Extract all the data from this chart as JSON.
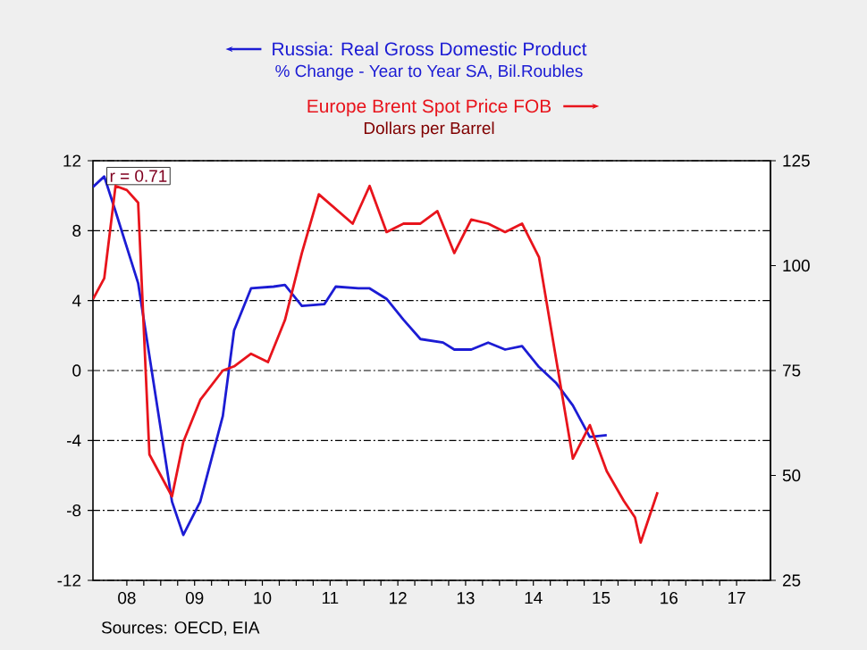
{
  "chart_data": {
    "type": "line",
    "ylabel": "% Change - Year to Year    SA, Bil.Roubles",
    "series": [
      {
        "name": "Russia: Real Gross Domestic Product",
        "color": "#1c1cd4",
        "axis": "y",
        "x": [
          "2008-01",
          "2008-03",
          "2008-05",
          "2008-09",
          "2009-03",
          "2009-05",
          "2009-08",
          "2009-12",
          "2010-02",
          "2010-05",
          "2010-09",
          "2010-11",
          "2011-02",
          "2011-06",
          "2011-08",
          "2011-12",
          "2012-02",
          "2012-05",
          "2012-08",
          "2012-11",
          "2013-03",
          "2013-05",
          "2013-08",
          "2013-11",
          "2014-02",
          "2014-05",
          "2014-08",
          "2014-11",
          "2015-02",
          "2015-05",
          "2015-08"
        ],
        "values": [
          10.5,
          11.1,
          9.1,
          5.0,
          -7.5,
          -9.4,
          -7.5,
          -2.6,
          2.3,
          4.7,
          4.8,
          4.9,
          3.7,
          3.8,
          4.8,
          4.7,
          4.7,
          4.1,
          2.9,
          1.8,
          1.6,
          1.2,
          1.2,
          1.6,
          1.2,
          1.4,
          0.2,
          -0.7,
          -2.0,
          -3.8,
          -3.7
        ]
      },
      {
        "name": "Europe Brent Spot Price FOB",
        "color": "#e8141c",
        "axis": "y2",
        "x": [
          "2008-01",
          "2008-03",
          "2008-05",
          "2008-07",
          "2008-09",
          "2008-11",
          "2009-03",
          "2009-05",
          "2009-08",
          "2009-12",
          "2010-02",
          "2010-05",
          "2010-08",
          "2010-11",
          "2011-02",
          "2011-05",
          "2011-11",
          "2012-02",
          "2012-05",
          "2012-08",
          "2012-11",
          "2013-02",
          "2013-05",
          "2013-08",
          "2013-11",
          "2014-02",
          "2014-05",
          "2014-08",
          "2015-02",
          "2015-05",
          "2015-08",
          "2015-11",
          "2016-01",
          "2016-02",
          "2016-05"
        ],
        "values": [
          92,
          97,
          119,
          118,
          115,
          55,
          45,
          58,
          68,
          75,
          76,
          79,
          77,
          87,
          103,
          117,
          110,
          119,
          108,
          110,
          110,
          113,
          103,
          111,
          110,
          108,
          110,
          102,
          54,
          62,
          51,
          44,
          40,
          34,
          46
        ]
      }
    ],
    "xlim": [
      "2008-01",
      "2018-01"
    ],
    "xticks": [
      {
        "value": "2008-07",
        "label": "08"
      },
      {
        "value": "2009-07",
        "label": "09"
      },
      {
        "value": "2010-07",
        "label": "10"
      },
      {
        "value": "2011-07",
        "label": "11"
      },
      {
        "value": "2012-07",
        "label": "12"
      },
      {
        "value": "2013-07",
        "label": "13"
      },
      {
        "value": "2014-07",
        "label": "14"
      },
      {
        "value": "2015-07",
        "label": "15"
      },
      {
        "value": "2016-07",
        "label": "16"
      },
      {
        "value": "2017-07",
        "label": "17"
      }
    ],
    "ylim": [
      -12,
      12
    ],
    "yticks": [
      -12,
      -8,
      -4,
      0,
      4,
      8,
      12
    ],
    "y2lim": [
      25,
      125
    ],
    "y2ticks": [
      25,
      50,
      75,
      100,
      125
    ],
    "grid": "y",
    "legend": "top",
    "line_style": "solid",
    "marker": "none",
    "annotations": [
      "r = 0.71",
      "Sources:  OECD, EIA",
      "Dollars per Barrel"
    ]
  }
}
